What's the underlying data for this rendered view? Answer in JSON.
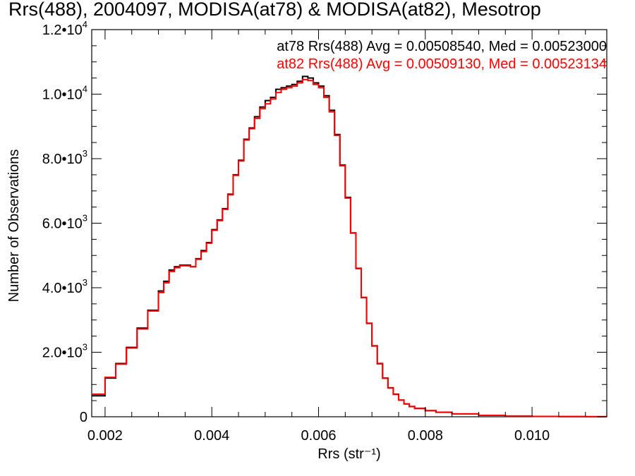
{
  "chart_data": {
    "type": "line",
    "title": "Rrs(488), 2004097, MODISA(at78) & MODISA(at82), Mesotrop",
    "xlabel": "Rrs (str⁻¹)",
    "ylabel": "Number of Observations",
    "xlim": [
      0.00175,
      0.0114
    ],
    "ylim": [
      0,
      12000
    ],
    "x_ticks": [
      {
        "value": 0.002,
        "label": "0.002"
      },
      {
        "value": 0.004,
        "label": "0.004"
      },
      {
        "value": 0.006,
        "label": "0.006"
      },
      {
        "value": 0.008,
        "label": "0.008"
      },
      {
        "value": 0.01,
        "label": "0.010"
      }
    ],
    "y_ticks": [
      {
        "value": 0,
        "mantissa": "0",
        "exp": ""
      },
      {
        "value": 2000,
        "mantissa": "2.0•10",
        "exp": "3"
      },
      {
        "value": 4000,
        "mantissa": "4.0•10",
        "exp": "3"
      },
      {
        "value": 6000,
        "mantissa": "6.0•10",
        "exp": "3"
      },
      {
        "value": 8000,
        "mantissa": "8.0•10",
        "exp": "3"
      },
      {
        "value": 10000,
        "mantissa": "1.0•10",
        "exp": "4"
      },
      {
        "value": 12000,
        "mantissa": "1.2•10",
        "exp": "4"
      }
    ],
    "annotations": [
      {
        "text": "at78 Rrs(488) Avg = 0.00508540, Med = 0.00523000",
        "color": "#000000"
      },
      {
        "text": "at82 Rrs(488) Avg = 0.00509130, Med = 0.00523134",
        "color": "#ff0000"
      }
    ],
    "series_colors": [
      "#000000",
      "#ff0000"
    ],
    "series": [
      {
        "name": "at78",
        "x": [
          0.00175,
          0.002,
          0.0022,
          0.0024,
          0.0026,
          0.0028,
          0.003,
          0.0031,
          0.0032,
          0.0033,
          0.0034,
          0.0035,
          0.0036,
          0.0037,
          0.0038,
          0.0039,
          0.004,
          0.0041,
          0.0042,
          0.0043,
          0.0044,
          0.0045,
          0.0046,
          0.0047,
          0.0048,
          0.0049,
          0.005,
          0.0051,
          0.0052,
          0.0053,
          0.0054,
          0.0055,
          0.0056,
          0.0057,
          0.0058,
          0.0059,
          0.006,
          0.0061,
          0.0062,
          0.0063,
          0.0064,
          0.0065,
          0.0066,
          0.0067,
          0.0068,
          0.0069,
          0.007,
          0.0071,
          0.0072,
          0.0073,
          0.0074,
          0.0075,
          0.0076,
          0.0077,
          0.0078,
          0.008,
          0.0082,
          0.0085,
          0.009,
          0.0095,
          0.01,
          0.0105,
          0.011,
          0.0114
        ],
        "values": [
          650,
          1200,
          1650,
          2150,
          2750,
          3300,
          3900,
          4200,
          4550,
          4650,
          4700,
          4700,
          4650,
          4900,
          5150,
          5400,
          5800,
          6100,
          6450,
          6900,
          7500,
          7950,
          8600,
          8950,
          9300,
          9600,
          9800,
          9900,
          10150,
          10200,
          10250,
          10300,
          10400,
          10550,
          10500,
          10350,
          10250,
          9950,
          9500,
          8750,
          7800,
          6800,
          5700,
          4600,
          3700,
          2900,
          2200,
          1650,
          1200,
          900,
          700,
          520,
          400,
          320,
          260,
          190,
          140,
          90,
          45,
          20,
          10,
          5,
          3,
          2
        ]
      },
      {
        "name": "at82",
        "x": [
          0.00175,
          0.002,
          0.0022,
          0.0024,
          0.0026,
          0.0028,
          0.003,
          0.0031,
          0.0032,
          0.0033,
          0.0034,
          0.0035,
          0.0036,
          0.0037,
          0.0038,
          0.0039,
          0.004,
          0.0041,
          0.0042,
          0.0043,
          0.0044,
          0.0045,
          0.0046,
          0.0047,
          0.0048,
          0.0049,
          0.005,
          0.0051,
          0.0052,
          0.0053,
          0.0054,
          0.0055,
          0.0056,
          0.0057,
          0.0058,
          0.0059,
          0.006,
          0.0061,
          0.0062,
          0.0063,
          0.0064,
          0.0065,
          0.0066,
          0.0067,
          0.0068,
          0.0069,
          0.007,
          0.0071,
          0.0072,
          0.0073,
          0.0074,
          0.0075,
          0.0076,
          0.0077,
          0.0078,
          0.008,
          0.0082,
          0.0085,
          0.009,
          0.0095,
          0.01,
          0.0105,
          0.011,
          0.0114
        ],
        "values": [
          700,
          1220,
          1630,
          2130,
          2720,
          3280,
          3850,
          4150,
          4500,
          4620,
          4680,
          4680,
          4650,
          4880,
          5120,
          5380,
          5780,
          6080,
          6430,
          6880,
          7480,
          7930,
          8580,
          8930,
          9250,
          9550,
          9700,
          9850,
          10050,
          10150,
          10200,
          10250,
          10350,
          10450,
          10420,
          10300,
          10200,
          9900,
          9450,
          8720,
          7780,
          6780,
          5690,
          4590,
          3690,
          2890,
          2190,
          1640,
          1190,
          890,
          690,
          515,
          395,
          315,
          255,
          185,
          138,
          88,
          44,
          19,
          10,
          5,
          3,
          2
        ]
      }
    ]
  }
}
